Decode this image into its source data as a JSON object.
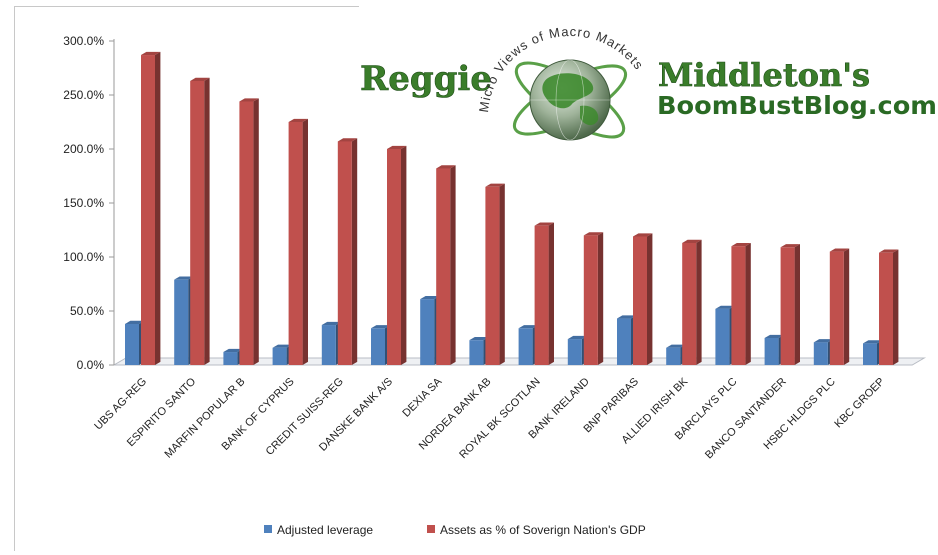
{
  "chart_data": {
    "type": "bar",
    "title": "",
    "xlabel": "",
    "ylabel": "",
    "ylim": [
      0,
      300
    ],
    "y_ticks": [
      "0.0%",
      "50.0%",
      "100.0%",
      "150.0%",
      "200.0%",
      "250.0%",
      "300.0%"
    ],
    "categories": [
      "UBS AG-REG",
      "ESPIRITO SANTO",
      "MARFIN POPULAR B",
      "BANK OF CYPRUS",
      "CREDIT SUISS-REG",
      "DANSKE BANK A/S",
      "DEXIA SA",
      "NORDEA BANK AB",
      "ROYAL BK SCOTLAN",
      "BANK IRELAND",
      "BNP PARIBAS",
      "ALLIED IRISH BK",
      "BARCLAYS PLC",
      "BANCO SANTANDER",
      "HSBC HLDGS PLC",
      "KBC GROEP"
    ],
    "series": [
      {
        "name": "Adjusted leverage",
        "color": "#4f81bd",
        "values": [
          38,
          79,
          12,
          16,
          37,
          34,
          61,
          23,
          34,
          24,
          43,
          16,
          52,
          25,
          21,
          20
        ]
      },
      {
        "name": "Assets as % of Soverign Nation's GDP",
        "color": "#c0504d",
        "values": [
          287,
          263,
          244,
          225,
          207,
          200,
          182,
          165,
          129,
          120,
          119,
          113,
          110,
          109,
          105,
          104
        ]
      }
    ],
    "grid": false,
    "legend_position": "bottom"
  },
  "watermark": {
    "left_word": "Reggie",
    "right_word": "Middleton's",
    "domain": "BoomBustBlog.com",
    "arc_text": "Micro Views of Macro Markets"
  }
}
